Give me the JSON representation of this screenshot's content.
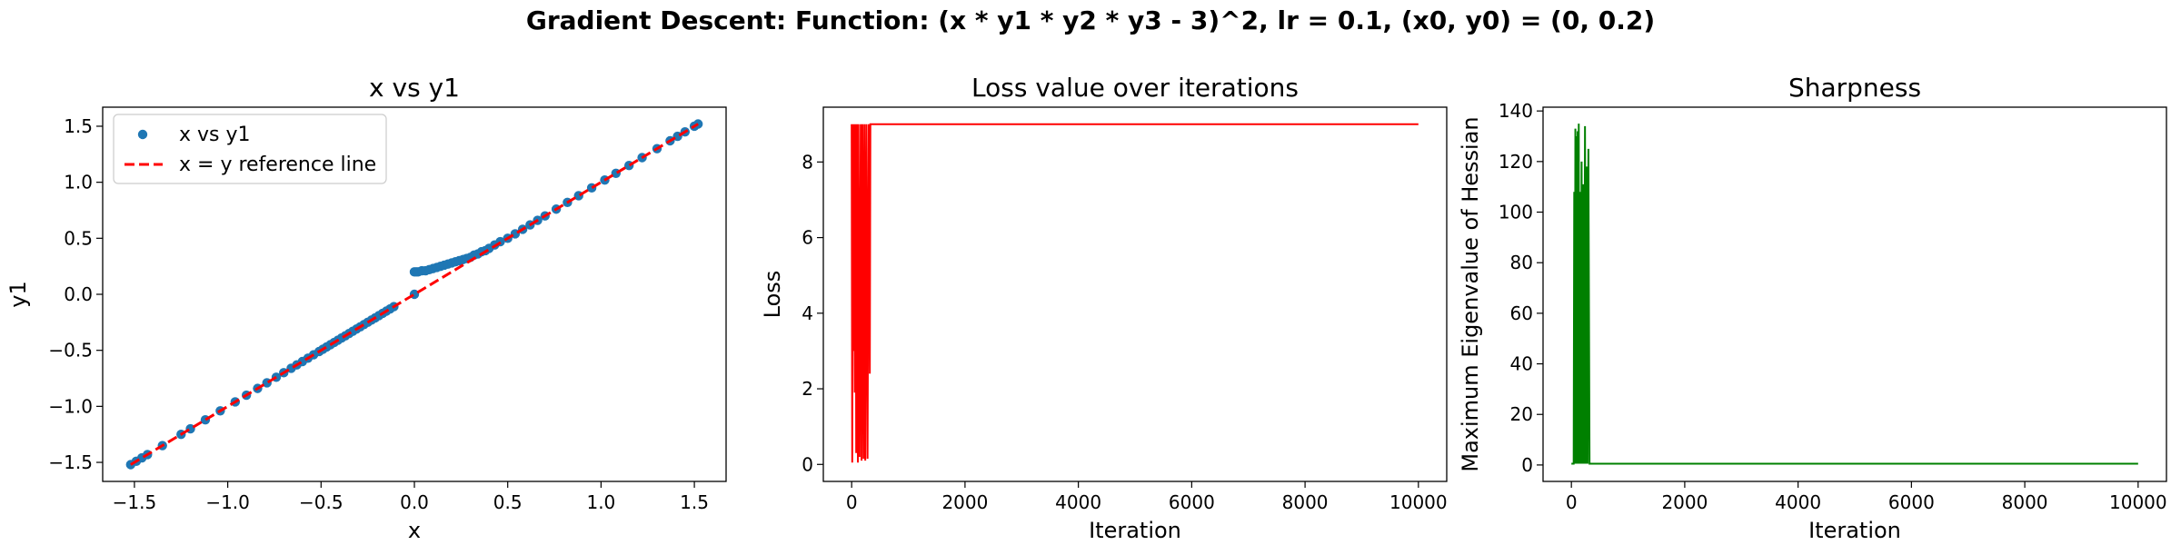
{
  "figure": {
    "suptitle": "Gradient Descent: Function: (x * y1 * y2 * y3 - 3)^2, lr = 0.1, (x0, y0) = (0, 0.2)"
  },
  "chart_data": [
    {
      "type": "scatter",
      "title": "x vs y1",
      "xlabel": "x",
      "ylabel": "y1",
      "xlim": [
        -1.67,
        1.67
      ],
      "ylim": [
        -1.67,
        1.67
      ],
      "xticks": [
        -1.5,
        -1.0,
        -0.5,
        0.0,
        0.5,
        1.0,
        1.5
      ],
      "xtick_labels": [
        "−1.5",
        "−1.0",
        "−0.5",
        "0.0",
        "0.5",
        "1.0",
        "1.5"
      ],
      "yticks": [
        -1.5,
        -1.0,
        -0.5,
        0.0,
        0.5,
        1.0,
        1.5
      ],
      "ytick_labels": [
        "−1.5",
        "−1.0",
        "−0.5",
        "0.0",
        "0.5",
        "1.0",
        "1.5"
      ],
      "grid": false,
      "legend": {
        "position": "upper-left",
        "entries": [
          "x vs y1",
          "x = y reference line"
        ]
      },
      "series": [
        {
          "name": "x vs y1",
          "kind": "scatter",
          "color": "#1f77b4",
          "x": [
            -1.52,
            -1.49,
            -1.46,
            -1.43,
            -1.35,
            -1.25,
            -1.2,
            -1.12,
            -1.04,
            -0.96,
            -0.9,
            -0.84,
            -0.79,
            -0.74,
            -0.7,
            -0.66,
            -0.63,
            -0.6,
            -0.57,
            -0.54,
            -0.51,
            -0.49,
            -0.47,
            -0.45,
            -0.43,
            -0.41,
            -0.39,
            -0.37,
            -0.35,
            -0.33,
            -0.31,
            -0.29,
            -0.27,
            -0.25,
            -0.23,
            -0.21,
            -0.19,
            -0.17,
            -0.15,
            -0.13,
            -0.11,
            0.0,
            0.01,
            0.0,
            0.02,
            0.04,
            0.06,
            0.08,
            0.1,
            0.12,
            0.14,
            0.16,
            0.18,
            0.2,
            0.22,
            0.24,
            0.26,
            0.28,
            0.3,
            0.32,
            0.34,
            0.36,
            0.38,
            0.4,
            0.43,
            0.46,
            0.5,
            0.54,
            0.58,
            0.62,
            0.66,
            0.7,
            0.76,
            0.82,
            0.88,
            0.95,
            1.02,
            1.08,
            1.15,
            1.22,
            1.3,
            1.37,
            1.41,
            1.45,
            1.5,
            1.52
          ],
          "y": [
            -1.52,
            -1.49,
            -1.46,
            -1.43,
            -1.35,
            -1.25,
            -1.2,
            -1.12,
            -1.04,
            -0.96,
            -0.9,
            -0.84,
            -0.79,
            -0.74,
            -0.7,
            -0.66,
            -0.63,
            -0.6,
            -0.57,
            -0.54,
            -0.51,
            -0.49,
            -0.47,
            -0.45,
            -0.43,
            -0.41,
            -0.39,
            -0.37,
            -0.35,
            -0.33,
            -0.31,
            -0.29,
            -0.27,
            -0.25,
            -0.23,
            -0.21,
            -0.19,
            -0.17,
            -0.15,
            -0.13,
            -0.11,
            0.2,
            0.2,
            0.0,
            0.2,
            0.21,
            0.21,
            0.22,
            0.23,
            0.24,
            0.25,
            0.26,
            0.27,
            0.28,
            0.29,
            0.3,
            0.31,
            0.32,
            0.33,
            0.35,
            0.36,
            0.38,
            0.39,
            0.41,
            0.44,
            0.47,
            0.5,
            0.54,
            0.58,
            0.62,
            0.66,
            0.7,
            0.76,
            0.82,
            0.88,
            0.95,
            1.02,
            1.08,
            1.15,
            1.22,
            1.3,
            1.37,
            1.41,
            1.45,
            1.5,
            1.52
          ]
        },
        {
          "name": "x = y reference line",
          "kind": "line",
          "style": "dashed",
          "color": "#ff0000",
          "x": [
            -1.52,
            1.52
          ],
          "y": [
            -1.52,
            1.52
          ]
        }
      ]
    },
    {
      "type": "line",
      "title": "Loss value over iterations",
      "xlabel": "Iteration",
      "ylabel": "Loss",
      "xlim": [
        -500,
        10500
      ],
      "ylim": [
        -0.45,
        9.45
      ],
      "xticks": [
        0,
        2000,
        4000,
        6000,
        8000,
        10000
      ],
      "xtick_labels": [
        "0",
        "2000",
        "4000",
        "6000",
        "8000",
        "10000"
      ],
      "yticks": [
        0,
        2,
        4,
        6,
        8
      ],
      "ytick_labels": [
        "0",
        "2",
        "4",
        "6",
        "8"
      ],
      "grid": false,
      "series": [
        {
          "color": "#ff0000",
          "x": [
            0,
            10,
            20,
            30,
            40,
            55,
            70,
            80,
            95,
            110,
            120,
            140,
            160,
            175,
            190,
            210,
            225,
            240,
            260,
            280,
            300,
            320,
            330,
            345,
            10000
          ],
          "y": [
            9.0,
            0.05,
            9.0,
            3.0,
            9.0,
            1.9,
            9.0,
            0.3,
            9.0,
            0.05,
            9.0,
            0.2,
            9.0,
            0.1,
            9.0,
            0.15,
            9.0,
            0.1,
            9.0,
            0.15,
            9.0,
            2.4,
            9.0,
            9.0,
            9.0
          ]
        }
      ]
    },
    {
      "type": "line",
      "title": "Sharpness",
      "xlabel": "Iteration",
      "ylabel": "Maximum Eigenvalue of Hessian",
      "xlim": [
        -500,
        10500
      ],
      "ylim": [
        -6.5,
        141.5
      ],
      "xticks": [
        0,
        2000,
        4000,
        6000,
        8000,
        10000
      ],
      "xtick_labels": [
        "0",
        "2000",
        "4000",
        "6000",
        "8000",
        "10000"
      ],
      "yticks": [
        0,
        20,
        40,
        60,
        80,
        100,
        120,
        140
      ],
      "ytick_labels": [
        "0",
        "20",
        "40",
        "60",
        "80",
        "100",
        "120",
        "140"
      ],
      "grid": false,
      "series": [
        {
          "color": "#008000",
          "x": [
            0,
            40,
            50,
            60,
            70,
            80,
            90,
            100,
            110,
            120,
            130,
            140,
            150,
            165,
            180,
            195,
            210,
            225,
            240,
            255,
            270,
            285,
            300,
            320,
            10000
          ],
          "y": [
            0.5,
            0.5,
            108,
            0.5,
            133,
            0.5,
            130,
            0.5,
            132,
            0.5,
            135,
            0.5,
            108,
            0.5,
            120,
            0.5,
            111,
            0.5,
            134,
            0.5,
            118,
            0.5,
            125,
            0.5,
            0.5
          ]
        }
      ]
    }
  ]
}
